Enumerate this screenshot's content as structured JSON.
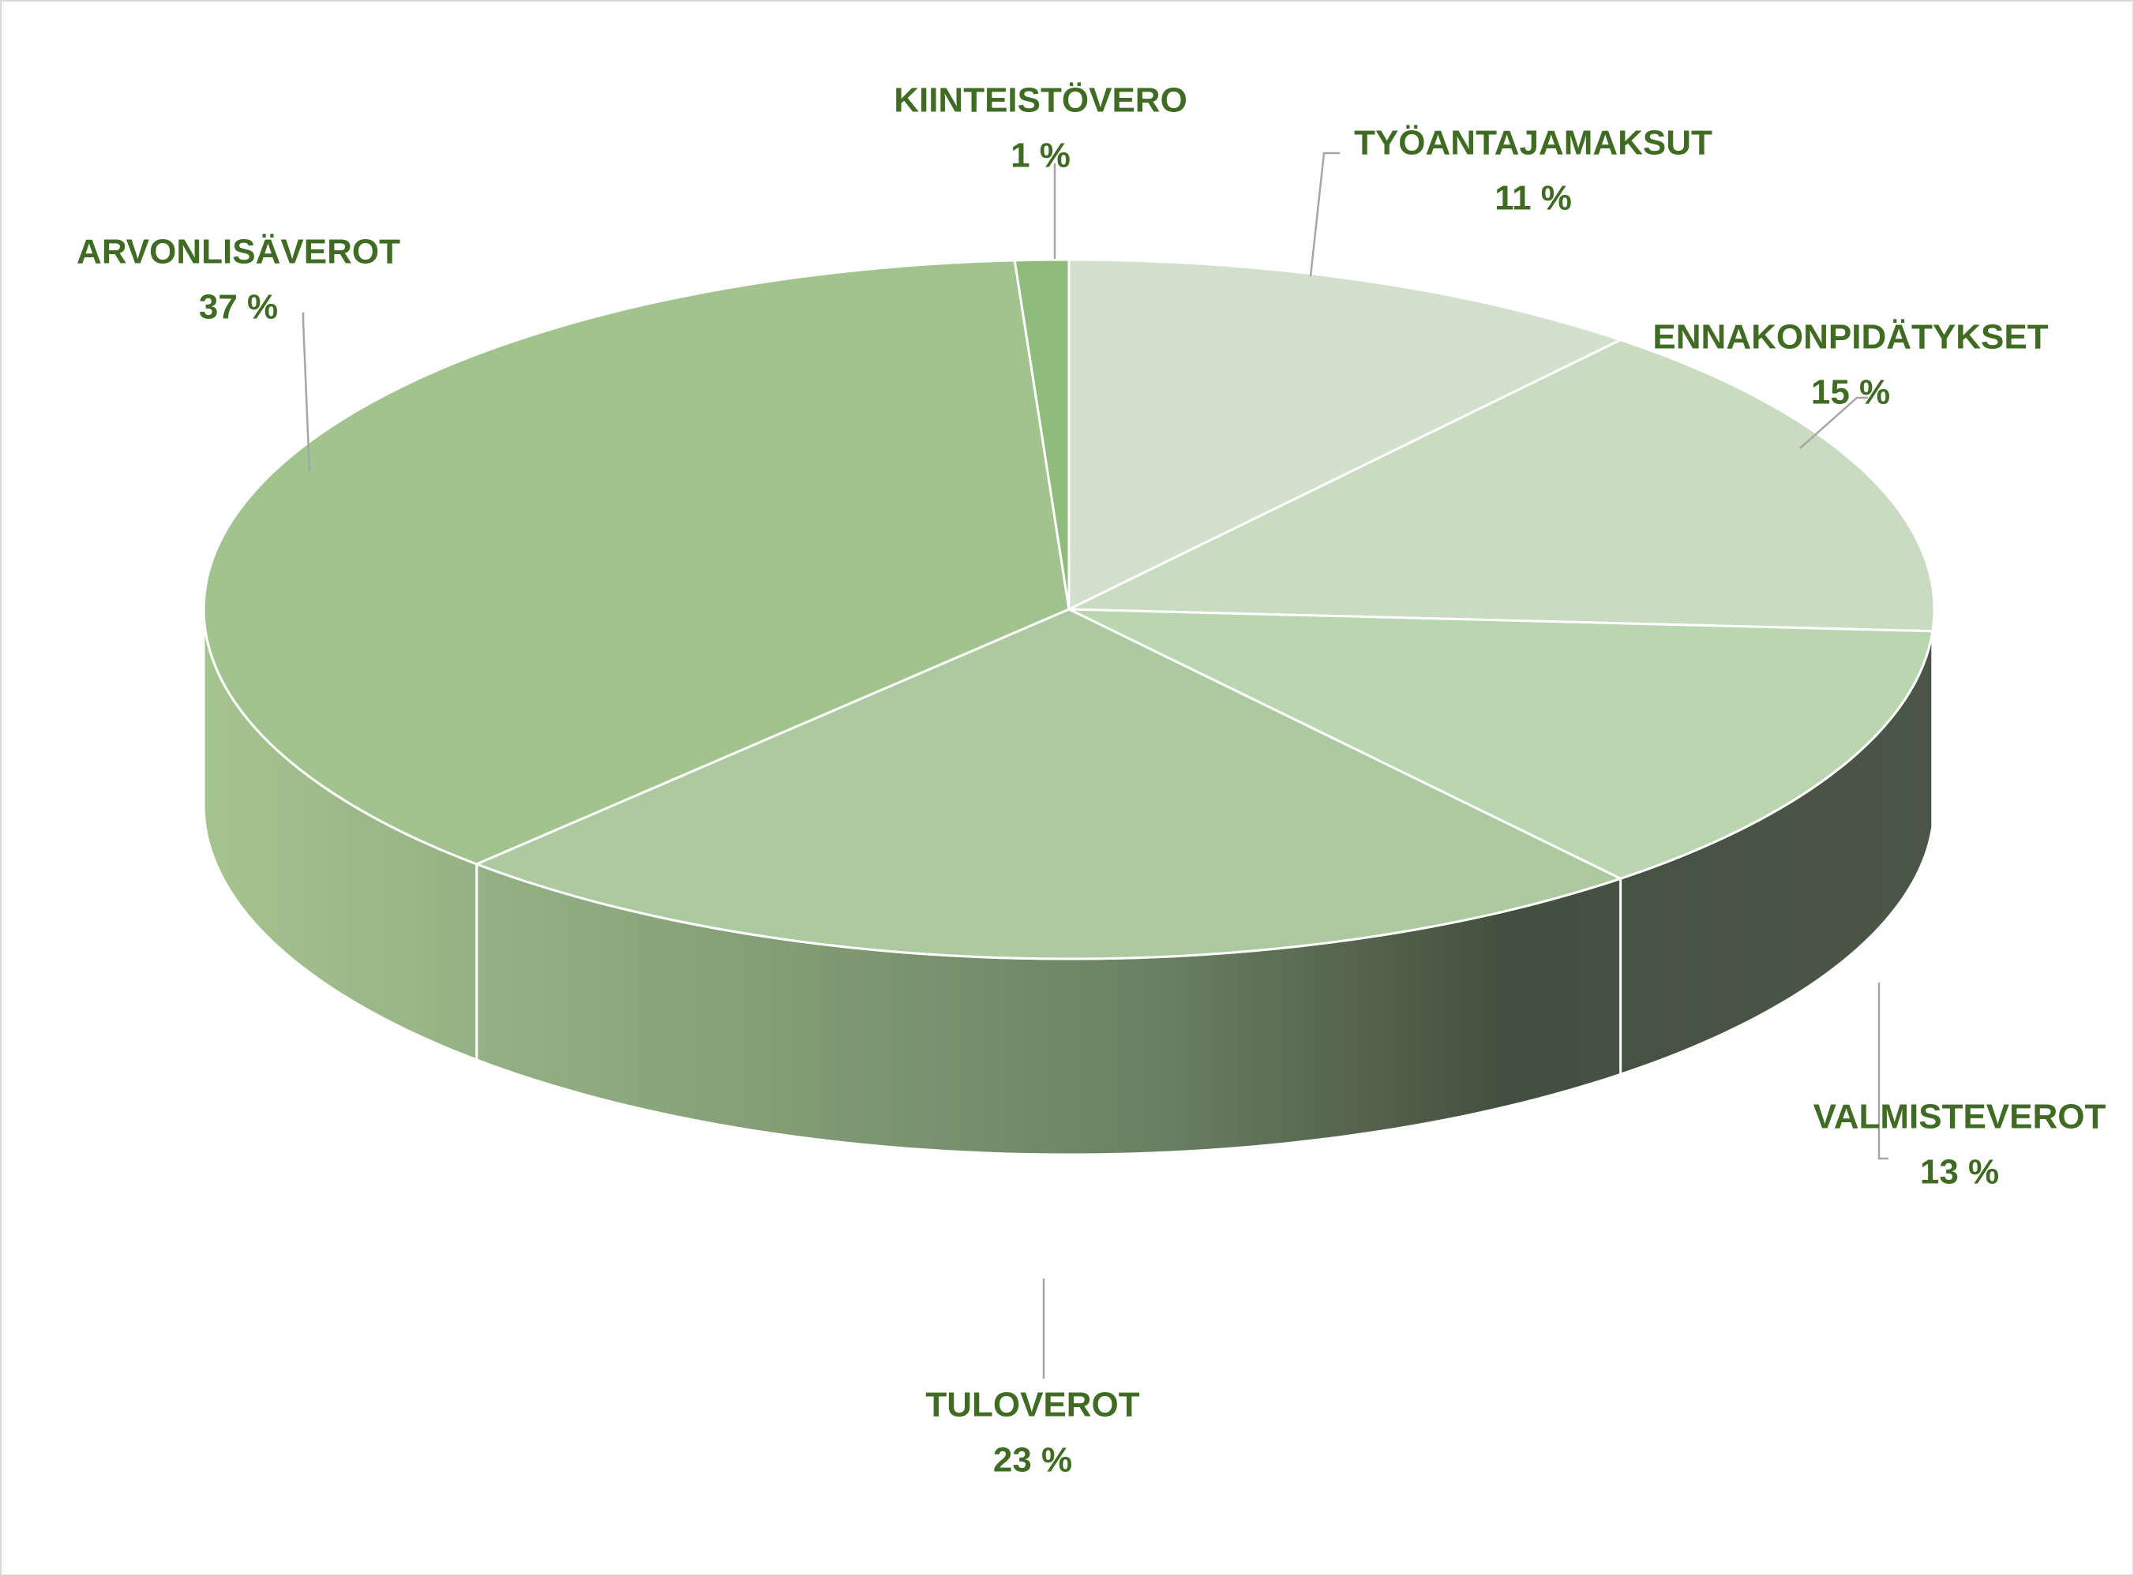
{
  "chart_data": {
    "type": "pie",
    "three_d": true,
    "title": "",
    "legend": "none",
    "label_color": "#3f6b22",
    "slices": [
      {
        "name": "TYÖANTAJAMAKSUT",
        "value": 11,
        "value_label": "11 %",
        "color": "#d3e0cd"
      },
      {
        "name": "ENNAKONPIDÄTYKSET",
        "value": 15,
        "value_label": "15 %",
        "color": "#c9dbc0"
      },
      {
        "name": "VALMISTEVEROT",
        "value": 13,
        "value_label": "13 %",
        "color": "#bad6b1"
      },
      {
        "name": "TULOVEROT",
        "value": 23,
        "value_label": "23 %",
        "color": "#adc99f"
      },
      {
        "name": "ARVONLISÄVEROT",
        "value": 37,
        "value_label": "37 %",
        "color": "#a1c38e"
      },
      {
        "name": "KIINTEISTÖVERO",
        "value": 1,
        "value_label": "1 %",
        "color": "#8fbc7a"
      }
    ]
  }
}
